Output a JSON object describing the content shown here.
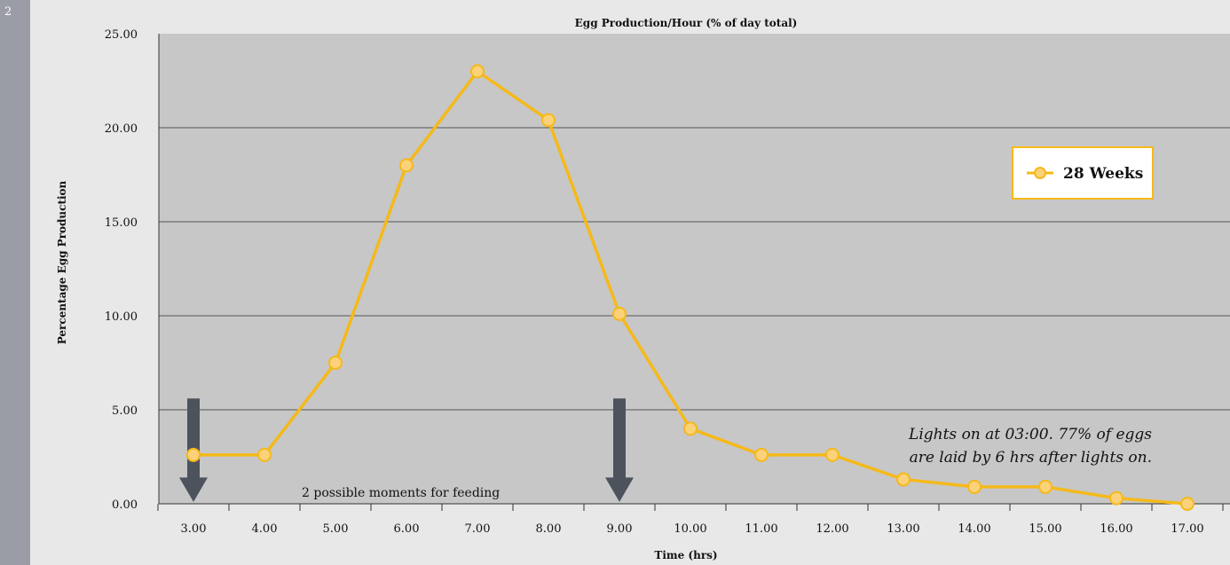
{
  "page": {
    "number": "2"
  },
  "chart_data": {
    "type": "line",
    "title": "Egg Production/Hour (% of day total)",
    "xlabel": "Time (hrs)",
    "ylabel": "Percentage Egg Production",
    "x": [
      3,
      4,
      5,
      6,
      7,
      8,
      9,
      10,
      11,
      12,
      13,
      14,
      15,
      16,
      17
    ],
    "x_tick_labels": [
      "3.00",
      "4.00",
      "5.00",
      "6.00",
      "7.00",
      "8.00",
      "9.00",
      "10.00",
      "11.00",
      "12.00",
      "13.00",
      "14.00",
      "15.00",
      "16.00",
      "17.00"
    ],
    "y_ticks": [
      0,
      5,
      10,
      15,
      20,
      25
    ],
    "y_tick_labels": [
      "0.00",
      "5.00",
      "10.00",
      "15.00",
      "20.00",
      "25.00"
    ],
    "ylim": [
      0,
      25
    ],
    "grid": true,
    "legend_position": "top-right",
    "series": [
      {
        "name": "28 Weeks",
        "color": "#f5b919",
        "marker_fill": "#fbd27a",
        "values": [
          2.6,
          2.6,
          7.5,
          18.0,
          23.0,
          20.4,
          10.1,
          4.0,
          2.6,
          2.6,
          1.3,
          0.9,
          0.9,
          0.3,
          0.0
        ]
      }
    ],
    "annotations": {
      "note_line1": "Lights on at 03:00.  77% of eggs",
      "note_line2": "are laid by 6 hrs after lights on.",
      "feeding_label": "2 possible moments for feeding",
      "feeding_arrows_at_x": [
        3,
        9
      ]
    },
    "colors": {
      "plot_background": "#c7c7c8",
      "gridline": "#545456",
      "arrow": "#4d535c"
    }
  }
}
